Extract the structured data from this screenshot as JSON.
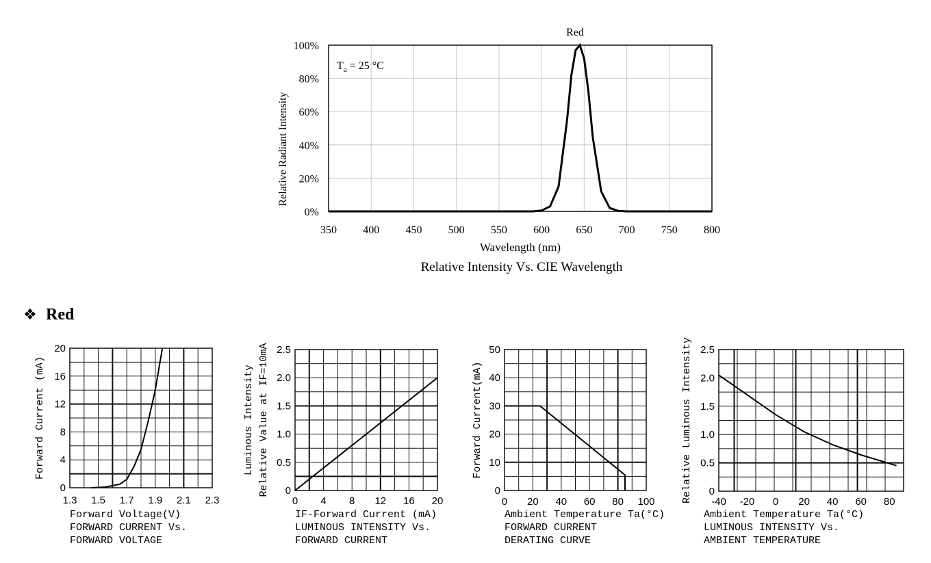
{
  "section_heading": {
    "bullet": "❖",
    "text": "Red"
  },
  "spectrum": {
    "chart_data": {
      "type": "line",
      "series_label": "Red",
      "annotation": {
        "T": "T",
        "sub": "a",
        "rest": " = 25 °C"
      },
      "ylabel": "Relative Radiant Intensity",
      "xlabel": "Wavelength (nm)",
      "caption": "Relative Intensity Vs. CIE Wavelength",
      "xlim": [
        350,
        800
      ],
      "ylim": [
        0,
        100
      ],
      "x_ticks": [
        "350",
        "400",
        "450",
        "500",
        "550",
        "600",
        "650",
        "700",
        "750",
        "800"
      ],
      "y_ticks": [
        "0%",
        "20%",
        "40%",
        "60%",
        "80%",
        "100%"
      ],
      "grid": true,
      "series": [
        {
          "x": [
            350,
            590,
            600,
            610,
            620,
            630,
            635,
            640,
            645,
            650,
            655,
            660,
            670,
            680,
            690,
            700,
            800
          ],
          "y": [
            0,
            0,
            0.5,
            3,
            15,
            55,
            82,
            97,
            100,
            92,
            72,
            45,
            12,
            2,
            0.3,
            0,
            0
          ]
        }
      ]
    }
  },
  "small_charts": [
    {
      "ylabel": "Forward Current (mA)",
      "ylabel2": "",
      "xlabel": "Forward Voltage(V)",
      "caption1": "FORWARD CURRENT Vs.",
      "caption2": "FORWARD VOLTAGE",
      "chart_data": {
        "type": "line",
        "xlim": [
          1.3,
          2.3
        ],
        "ylim": [
          0,
          20
        ],
        "x_ticks": [
          "1.3",
          "1.5",
          "1.7",
          "1.9",
          "2.1",
          "2.3"
        ],
        "y_ticks": [
          "0",
          "4",
          "8",
          "12",
          "16",
          "20"
        ],
        "grid": true,
        "series": [
          {
            "x": [
              1.45,
              1.55,
              1.6,
              1.65,
              1.7,
              1.75,
              1.8,
              1.85,
              1.9,
              1.95
            ],
            "y": [
              0,
              0.1,
              0.3,
              0.5,
              1.2,
              3,
              5.5,
              9.5,
              14,
              20
            ]
          }
        ]
      }
    },
    {
      "ylabel": "Luminous Intensity",
      "ylabel2": "Relative Value at IF=10mA",
      "xlabel": "IF-Forward Current (mA)",
      "caption1": "LUMINOUS INTENSITY Vs.",
      "caption2": "FORWARD CURRENT",
      "chart_data": {
        "type": "line",
        "xlim": [
          0,
          20
        ],
        "ylim": [
          0,
          2.5
        ],
        "x_ticks": [
          "0",
          "4",
          "8",
          "12",
          "16",
          "20"
        ],
        "y_ticks": [
          "0",
          "0.5",
          "1.0",
          "1.5",
          "2.0",
          "2.5"
        ],
        "grid": true,
        "series": [
          {
            "x": [
              0,
              20
            ],
            "y": [
              0,
              2.0
            ]
          }
        ]
      }
    },
    {
      "ylabel": "Forward Current(mA)",
      "ylabel2": "",
      "xlabel": "Ambient Temperature Ta(°C)",
      "caption1": "FORWARD CURRENT",
      "caption2": "DERATING CURVE",
      "chart_data": {
        "type": "line",
        "xlim": [
          0,
          100
        ],
        "ylim": [
          0,
          50
        ],
        "x_ticks": [
          "0",
          "20",
          "40",
          "60",
          "80",
          "100"
        ],
        "y_ticks": [
          "0",
          "10",
          "20",
          "30",
          "40",
          "50"
        ],
        "grid": true,
        "series": [
          {
            "x": [
              0,
              25,
              85,
              85
            ],
            "y": [
              30,
              30,
              5.5,
              0
            ]
          }
        ]
      }
    },
    {
      "ylabel": "Relative Luminous Intensity",
      "ylabel2": "",
      "xlabel": "Ambient Temperature Ta(°C)",
      "caption1": "LUMINOUS INTENSITY Vs.",
      "caption2": "AMBIENT TEMPERATURE",
      "chart_data": {
        "type": "line",
        "xlim": [
          -40,
          90
        ],
        "ylim": [
          0,
          2.5
        ],
        "x_ticks": [
          "-40",
          "-20",
          "0",
          "20",
          "40",
          "60",
          "80"
        ],
        "y_ticks": [
          "0",
          "0.5",
          "1.0",
          "1.5",
          "2.0",
          "2.5"
        ],
        "grid": true,
        "series": [
          {
            "x": [
              -40,
              -20,
              0,
              20,
              40,
              60,
              85
            ],
            "y": [
              2.05,
              1.7,
              1.35,
              1.05,
              0.82,
              0.64,
              0.45
            ]
          }
        ]
      }
    }
  ]
}
